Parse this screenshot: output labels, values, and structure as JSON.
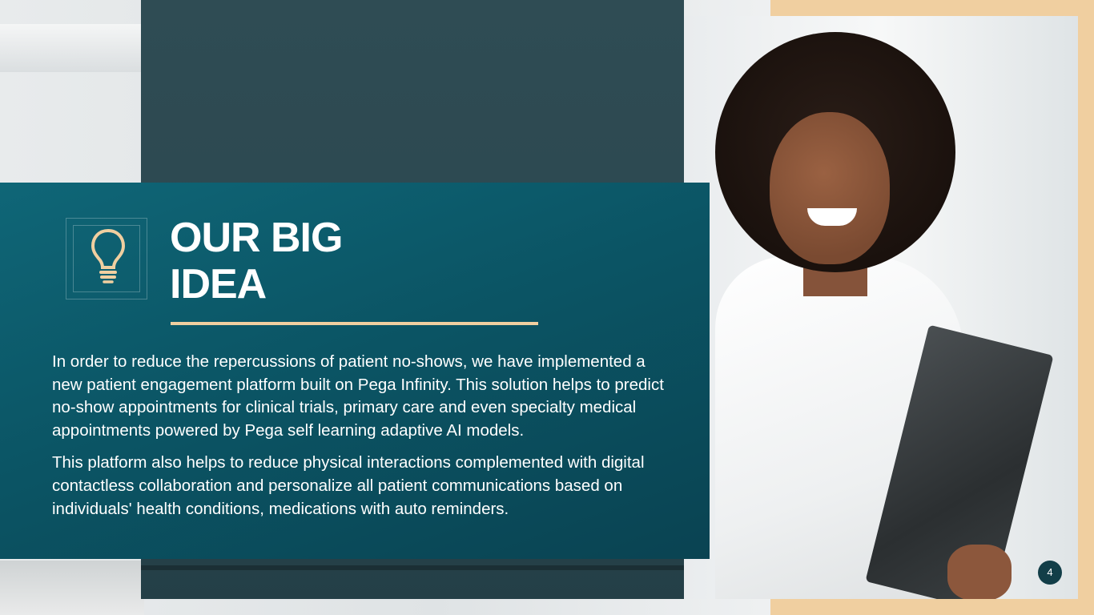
{
  "slide": {
    "title_line1": "OUR BIG",
    "title_line2": "IDEA",
    "paragraphs": [
      "In order to reduce the repercussions of patient no-shows, we have implemented a new patient engagement platform built on Pega Infinity. This solution helps to predict no-show appointments for clinical trials, primary care and even specialty medical appointments powered by Pega self learning adaptive AI models.",
      "This platform also helps to reduce physical interactions complemented with digital contactless collaboration and personalize all patient communications based on individuals' health conditions, medications with auto reminders."
    ],
    "page_number": "4",
    "icon": "lightbulb-icon"
  },
  "colors": {
    "teal": "#0b5565",
    "dark_panel": "#2f4c54",
    "accent_tan": "#f0cfa0",
    "page_badge": "#123e48"
  }
}
